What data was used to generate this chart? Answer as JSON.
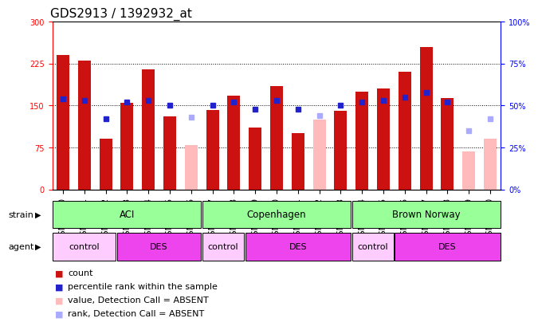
{
  "title": "GDS2913 / 1392932_at",
  "samples": [
    "GSM92200",
    "GSM92201",
    "GSM92202",
    "GSM92203",
    "GSM92204",
    "GSM92205",
    "GSM92206",
    "GSM92207",
    "GSM92208",
    "GSM92209",
    "GSM92210",
    "GSM92211",
    "GSM92212",
    "GSM92213",
    "GSM92214",
    "GSM92215",
    "GSM92216",
    "GSM92217",
    "GSM92218",
    "GSM92219",
    "GSM92220"
  ],
  "count_values": [
    240,
    230,
    90,
    155,
    215,
    130,
    null,
    142,
    168,
    110,
    185,
    100,
    null,
    140,
    175,
    180,
    210,
    255,
    163,
    null,
    null
  ],
  "count_absent": [
    null,
    null,
    null,
    null,
    null,
    null,
    80,
    null,
    null,
    null,
    null,
    null,
    125,
    null,
    null,
    null,
    null,
    null,
    null,
    68,
    90
  ],
  "rank_values": [
    54,
    53,
    42,
    52,
    53,
    50,
    null,
    50,
    52,
    48,
    53,
    48,
    null,
    50,
    52,
    53,
    55,
    58,
    52,
    null,
    null
  ],
  "rank_absent": [
    null,
    null,
    null,
    null,
    null,
    null,
    43,
    null,
    null,
    null,
    null,
    null,
    44,
    null,
    null,
    null,
    null,
    null,
    null,
    35,
    42
  ],
  "ylim_left": [
    0,
    300
  ],
  "ylim_right": [
    0,
    100
  ],
  "yticks_left": [
    0,
    75,
    150,
    225,
    300
  ],
  "yticks_right": [
    0,
    25,
    50,
    75,
    100
  ],
  "strain_groups": [
    {
      "label": "ACI",
      "start": 0,
      "end": 7
    },
    {
      "label": "Copenhagen",
      "start": 7,
      "end": 14
    },
    {
      "label": "Brown Norway",
      "start": 14,
      "end": 21
    }
  ],
  "agent_groups": [
    {
      "label": "control",
      "start": 0,
      "end": 3,
      "color": "#ffccff"
    },
    {
      "label": "DES",
      "start": 3,
      "end": 7,
      "color": "#ee44ee"
    },
    {
      "label": "control",
      "start": 7,
      "end": 9,
      "color": "#ffccff"
    },
    {
      "label": "DES",
      "start": 9,
      "end": 14,
      "color": "#ee44ee"
    },
    {
      "label": "control",
      "start": 14,
      "end": 16,
      "color": "#ffccff"
    },
    {
      "label": "DES",
      "start": 16,
      "end": 21,
      "color": "#ee44ee"
    }
  ],
  "bar_width": 0.6,
  "count_color": "#cc1111",
  "count_absent_color": "#ffbbbb",
  "rank_color": "#2222cc",
  "rank_absent_color": "#aaaaff",
  "strain_color": "#99ff99",
  "bg_color": "#ffffff",
  "title_fontsize": 11,
  "tick_fontsize": 7,
  "legend_fontsize": 8,
  "hgrid_values": [
    75,
    150,
    225
  ]
}
